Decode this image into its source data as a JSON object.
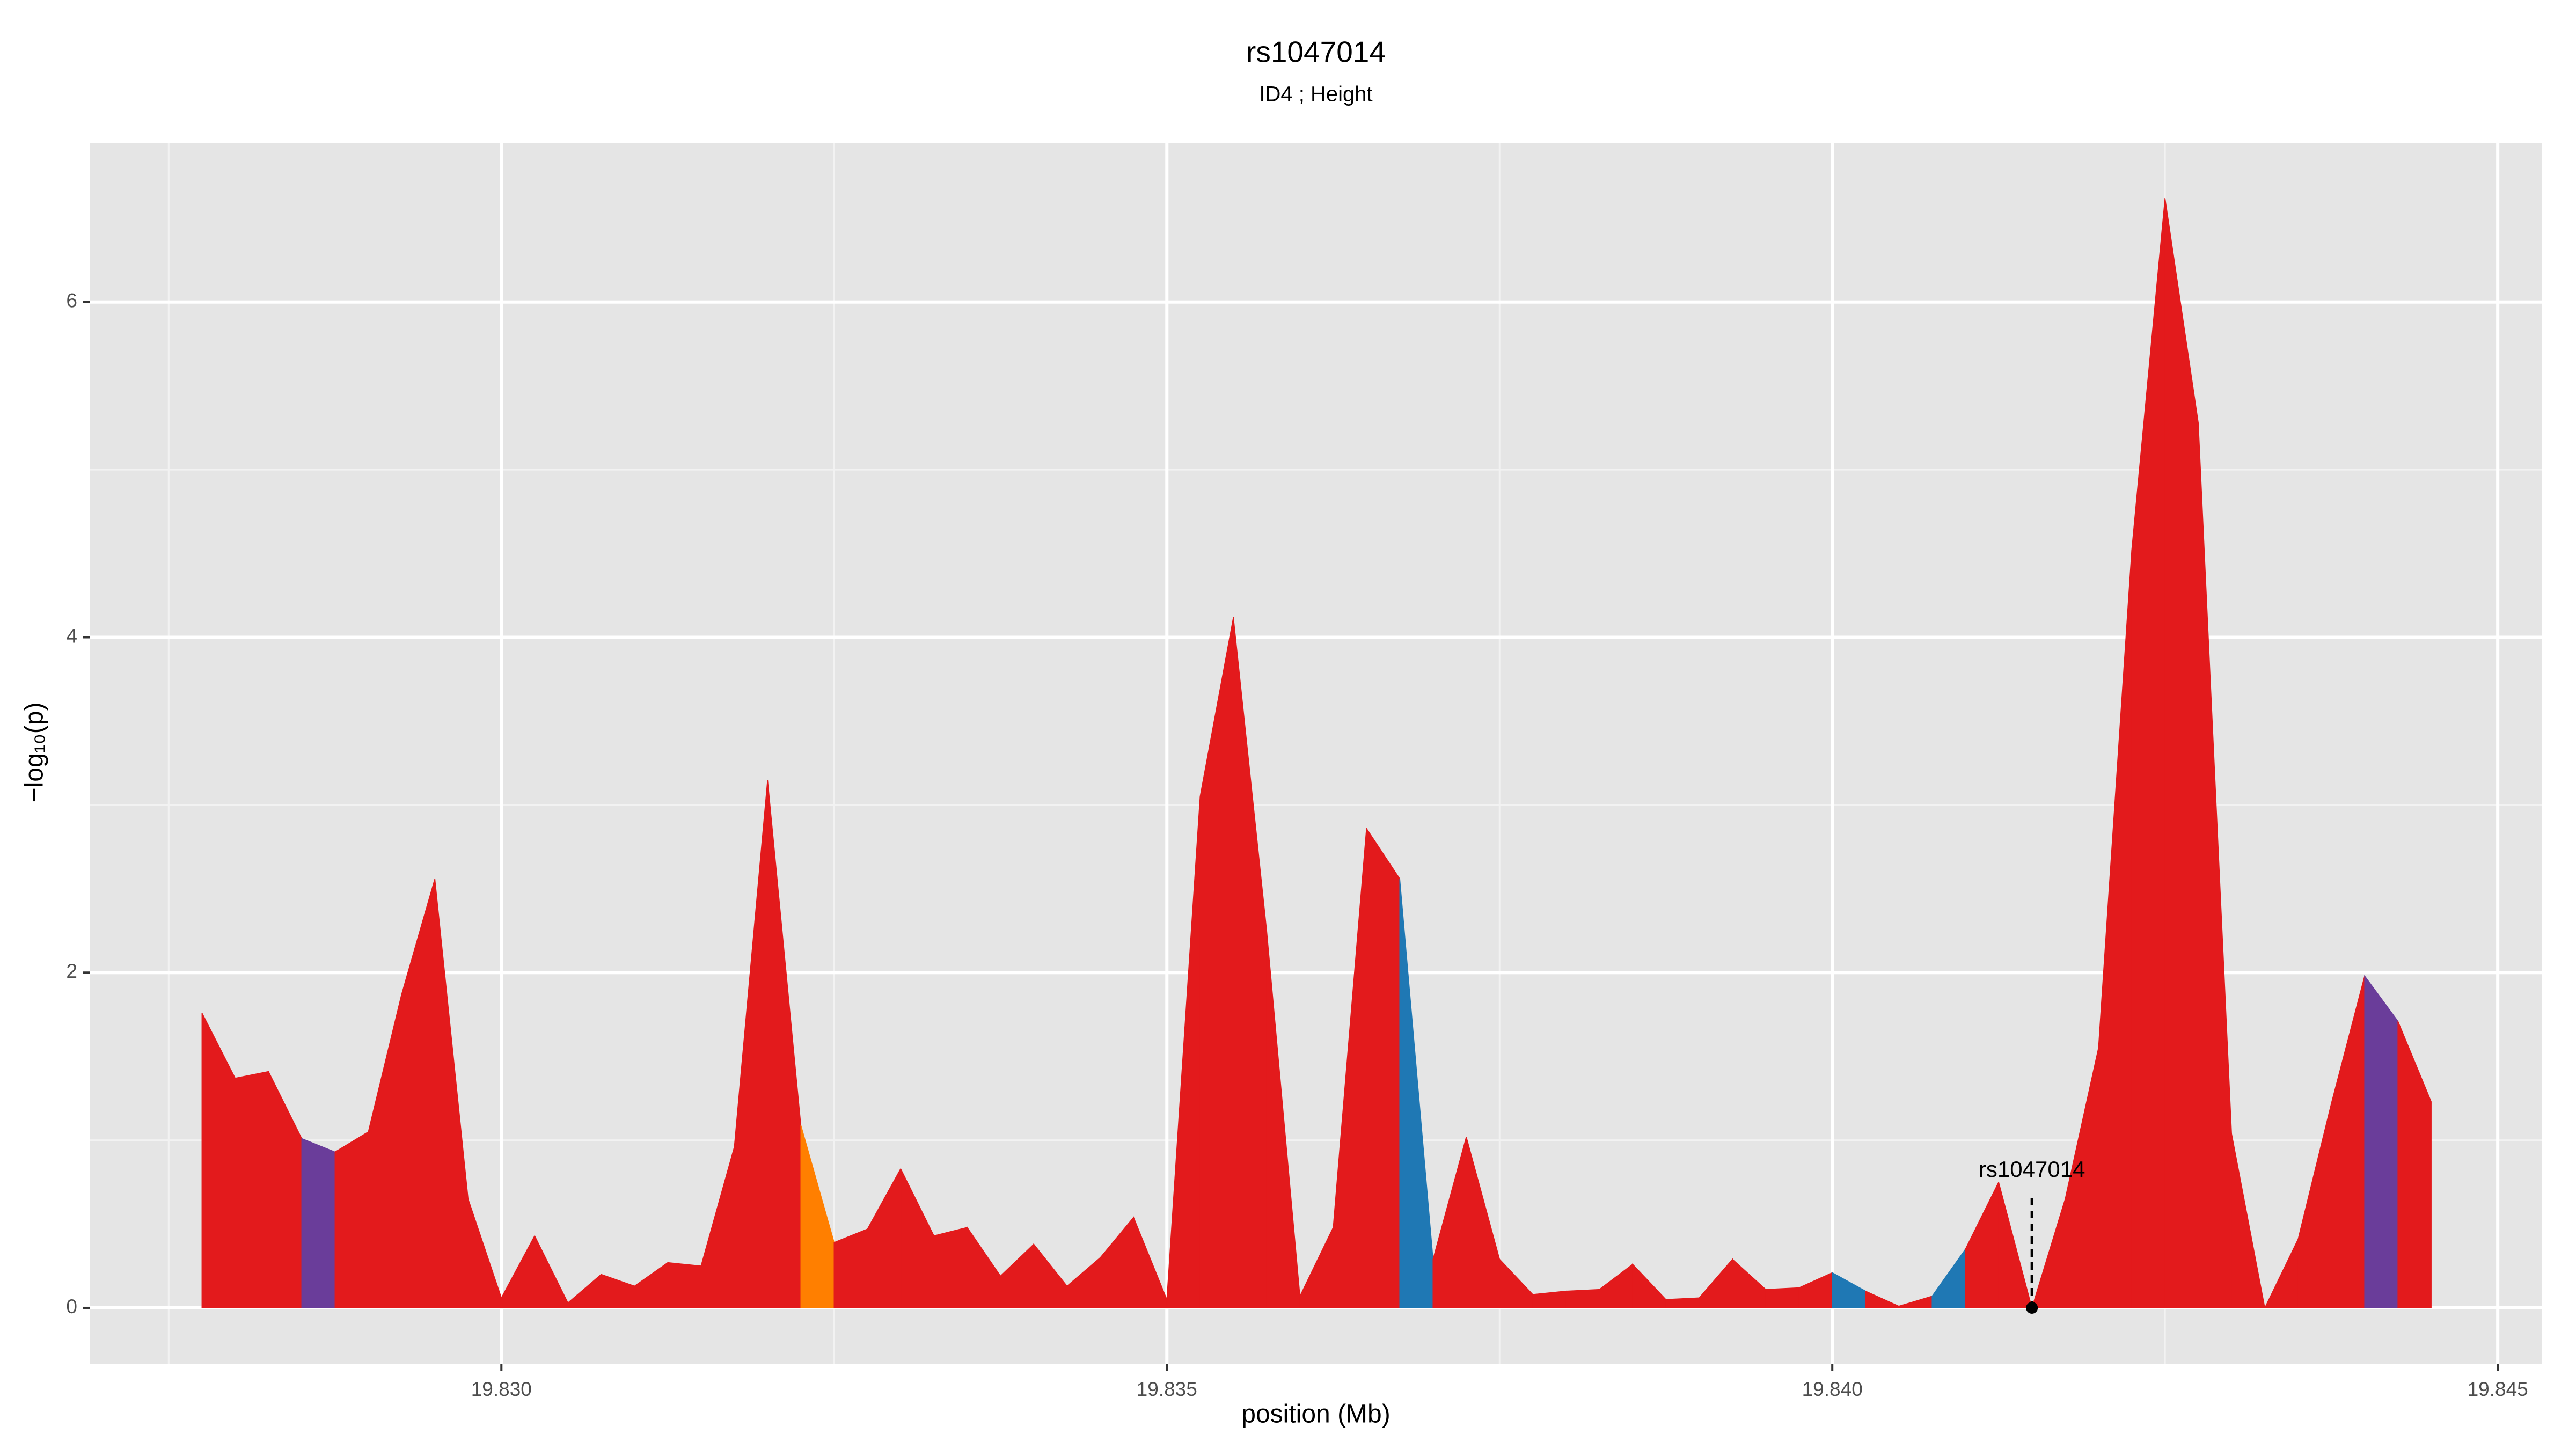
{
  "chart_data": {
    "type": "area",
    "title": "rs1047014",
    "subtitle": "ID4 ; Height",
    "x_label": "position (Mb)",
    "y_label": "−log₁₀(p)",
    "x": [
      19.82775,
      19.828,
      19.82825,
      19.8285,
      19.82875,
      19.829,
      19.82925,
      19.8295,
      19.82975,
      19.83,
      19.83025,
      19.8305,
      19.83075,
      19.831,
      19.83125,
      19.8315,
      19.83175,
      19.832,
      19.83225,
      19.8325,
      19.83275,
      19.833,
      19.83325,
      19.8335,
      19.83375,
      19.834,
      19.83425,
      19.8345,
      19.83475,
      19.835,
      19.83525,
      19.8355,
      19.83575,
      19.836,
      19.83625,
      19.8365,
      19.83675,
      19.837,
      19.83725,
      19.8375,
      19.83775,
      19.838,
      19.83825,
      19.8385,
      19.83875,
      19.839,
      19.83925,
      19.8395,
      19.83975,
      19.84,
      19.84025,
      19.8405,
      19.84075,
      19.841,
      19.84125,
      19.8415,
      19.84175,
      19.842,
      19.84225,
      19.8425,
      19.84275,
      19.843,
      19.84325,
      19.8435,
      19.84375,
      19.844,
      19.84425,
      19.8445
    ],
    "values": [
      1.76,
      1.37,
      1.41,
      1.01,
      0.93,
      1.05,
      1.87,
      2.56,
      0.65,
      0.06,
      0.43,
      0.03,
      0.2,
      0.13,
      0.27,
      0.25,
      0.96,
      3.15,
      1.09,
      0.39,
      0.47,
      0.83,
      0.43,
      0.48,
      0.19,
      0.38,
      0.13,
      0.3,
      0.54,
      0.05,
      3.05,
      4.12,
      2.25,
      0.07,
      0.48,
      2.86,
      2.56,
      0.29,
      1.02,
      0.29,
      0.08,
      0.1,
      0.11,
      0.26,
      0.05,
      0.06,
      0.29,
      0.11,
      0.12,
      0.21,
      0.1,
      0.01,
      0.07,
      0.35,
      0.75,
      0,
      0.65,
      1.55,
      4.52,
      6.62,
      5.28,
      1.04,
      0,
      0.41,
      1.22,
      1.98,
      1.71,
      1.23
    ],
    "segment_colors": [
      "#e31a1c",
      "#e31a1c",
      "#e31a1c",
      "#6a3d9a",
      "#e31a1c",
      "#e31a1c",
      "#e31a1c",
      "#e31a1c",
      "#e31a1c",
      "#e31a1c",
      "#e31a1c",
      "#e31a1c",
      "#e31a1c",
      "#e31a1c",
      "#e31a1c",
      "#e31a1c",
      "#e31a1c",
      "#e31a1c",
      "#ff7f00",
      "#e31a1c",
      "#e31a1c",
      "#e31a1c",
      "#e31a1c",
      "#e31a1c",
      "#e31a1c",
      "#e31a1c",
      "#e31a1c",
      "#e31a1c",
      "#e31a1c",
      "#e31a1c",
      "#e31a1c",
      "#e31a1c",
      "#e31a1c",
      "#e31a1c",
      "#e31a1c",
      "#e31a1c",
      "#1f78b4",
      "#e31a1c",
      "#e31a1c",
      "#e31a1c",
      "#e31a1c",
      "#e31a1c",
      "#e31a1c",
      "#e31a1c",
      "#e31a1c",
      "#e31a1c",
      "#e31a1c",
      "#e31a1c",
      "#e31a1c",
      "#1f78b4",
      "#e31a1c",
      "#e31a1c",
      "#1f78b4",
      "#e31a1c",
      "#e31a1c",
      "#e31a1c",
      "#e31a1c",
      "#e31a1c",
      "#e31a1c",
      "#e31a1c",
      "#e31a1c",
      "#e31a1c",
      "#e31a1c",
      "#e31a1c",
      "#e31a1c",
      "#6a3d9a",
      "#e31a1c"
    ],
    "annotation": {
      "text": "rs1047014",
      "x": 19.8415,
      "y": 0
    },
    "xlim": [
      19.82691,
      19.84533
    ],
    "ylim": [
      -0.333,
      6.95
    ],
    "xticks": [
      {
        "value": 19.83,
        "label": "19.830"
      },
      {
        "value": 19.835,
        "label": "19.835"
      },
      {
        "value": 19.84,
        "label": "19.840"
      },
      {
        "value": 19.845,
        "label": "19.845"
      }
    ],
    "yticks": [
      0,
      2,
      4,
      6
    ],
    "x_minor_grid": [
      19.8275,
      19.8325,
      19.8375,
      19.8425
    ],
    "y_minor_grid": [
      1,
      3,
      5
    ],
    "grid": true
  }
}
